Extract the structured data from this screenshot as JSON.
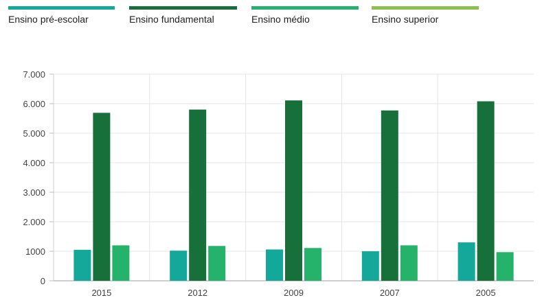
{
  "legend": {
    "items": [
      {
        "label": "Ensino pré-escolar",
        "color": "#14a89b"
      },
      {
        "label": "Ensino fundamental",
        "color": "#17703a"
      },
      {
        "label": "Ensino médio",
        "color": "#25b36b"
      },
      {
        "label": "Ensino superior",
        "color": "#8cc04a"
      }
    ]
  },
  "chart_data": {
    "type": "bar",
    "categories": [
      "2015",
      "2012",
      "2009",
      "2007",
      "2005"
    ],
    "series": [
      {
        "name": "Ensino pré-escolar",
        "color": "#14a89b",
        "values": [
          1050,
          1020,
          1060,
          1000,
          1300
        ]
      },
      {
        "name": "Ensino fundamental",
        "color": "#17703a",
        "values": [
          5690,
          5800,
          6110,
          5770,
          6080
        ]
      },
      {
        "name": "Ensino médio",
        "color": "#25b36b",
        "values": [
          1200,
          1180,
          1110,
          1200,
          970
        ]
      },
      {
        "name": "Ensino superior",
        "color": "#8cc04a",
        "values": [
          null,
          null,
          null,
          null,
          null
        ]
      }
    ],
    "ylim": [
      0,
      7000
    ],
    "yticks": [
      {
        "value": 0,
        "label": "0"
      },
      {
        "value": 1000,
        "label": "1000"
      },
      {
        "value": 2000,
        "label": "2.000"
      },
      {
        "value": 3000,
        "label": "3.000"
      },
      {
        "value": 4000,
        "label": "4.000"
      },
      {
        "value": 5000,
        "label": "5.000"
      },
      {
        "value": 6000,
        "label": "6.000"
      },
      {
        "value": 7000,
        "label": "7.000"
      }
    ],
    "grid": true,
    "legend_position": "top"
  }
}
